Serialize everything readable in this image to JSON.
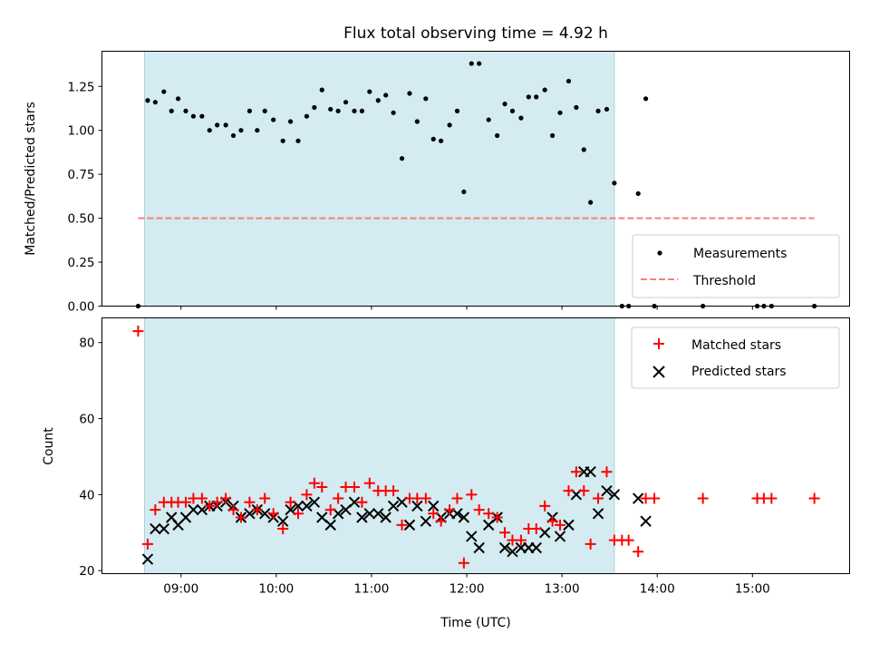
{
  "title": "Flux total observing time = 4.92 h",
  "colors": {
    "shade": "#d3ebf1",
    "shade_edge": "#a9d3dc",
    "measurement": "#000000",
    "threshold": "#f87e7e",
    "matched": "#ff0000",
    "predicted": "#000000"
  },
  "chart_data": [
    {
      "type": "scatter",
      "ylabel": "Matched/Predicted stars",
      "xlim": [
        8.17,
        16.02
      ],
      "ylim": [
        0,
        1.45
      ],
      "yticks": [
        0.0,
        0.25,
        0.5,
        0.75,
        1.0,
        1.25
      ],
      "ytick_labels": [
        "0.00",
        "0.25",
        "0.50",
        "0.75",
        "1.00",
        "1.25"
      ],
      "shaded_interval": [
        8.617,
        13.55
      ],
      "threshold": {
        "label": "Threshold",
        "y": 0.5,
        "x_range": [
          8.55,
          15.65
        ]
      },
      "legend": {
        "placement": "lower-right",
        "entries": [
          "Measurements",
          "Threshold"
        ]
      },
      "series": [
        {
          "name": "Measurements",
          "x": [
            8.55,
            8.65,
            8.73,
            8.82,
            8.9,
            8.97,
            9.05,
            9.13,
            9.22,
            9.3,
            9.38,
            9.47,
            9.55,
            9.63,
            9.72,
            9.8,
            9.88,
            9.97,
            10.07,
            10.15,
            10.23,
            10.32,
            10.4,
            10.48,
            10.57,
            10.65,
            10.73,
            10.82,
            10.9,
            10.98,
            11.07,
            11.15,
            11.23,
            11.32,
            11.4,
            11.48,
            11.57,
            11.65,
            11.73,
            11.82,
            11.9,
            11.97,
            12.05,
            12.13,
            12.23,
            12.32,
            12.4,
            12.48,
            12.57,
            12.65,
            12.73,
            12.82,
            12.9,
            12.98,
            13.07,
            13.15,
            13.23,
            13.3,
            13.38,
            13.47,
            13.55,
            13.63,
            13.7,
            13.8,
            13.88,
            13.97,
            14.48,
            15.05,
            15.12,
            15.2,
            15.65
          ],
          "y": [
            0.0,
            1.17,
            1.16,
            1.22,
            1.11,
            1.18,
            1.11,
            1.08,
            1.08,
            1.0,
            1.03,
            1.03,
            0.97,
            1.0,
            1.11,
            1.0,
            1.11,
            1.06,
            0.94,
            1.05,
            0.94,
            1.08,
            1.13,
            1.23,
            1.12,
            1.11,
            1.16,
            1.11,
            1.11,
            1.22,
            1.17,
            1.2,
            1.1,
            0.84,
            1.21,
            1.05,
            1.18,
            0.95,
            0.94,
            1.03,
            1.11,
            0.65,
            1.38,
            1.38,
            1.06,
            0.97,
            1.15,
            1.11,
            1.07,
            1.19,
            1.19,
            1.23,
            0.97,
            1.1,
            1.28,
            1.13,
            0.89,
            0.59,
            1.11,
            1.12,
            0.7,
            0.0,
            0.0,
            0.64,
            1.18,
            0.0,
            0.0,
            0.0,
            0.0,
            0.0,
            0.0
          ]
        }
      ]
    },
    {
      "type": "scatter",
      "ylabel": "Count",
      "xlabel": "Time (UTC)",
      "xlim": [
        8.17,
        16.02
      ],
      "ylim": [
        19.2,
        86.5
      ],
      "yticks": [
        20,
        40,
        60,
        80
      ],
      "xticks": [
        9,
        10,
        11,
        12,
        13,
        14,
        15
      ],
      "xtick_labels": [
        "09:00",
        "10:00",
        "11:00",
        "12:00",
        "13:00",
        "14:00",
        "15:00"
      ],
      "shaded_interval": [
        8.617,
        13.55
      ],
      "legend": {
        "placement": "upper-right",
        "entries": [
          "Matched stars",
          "Predicted stars"
        ]
      },
      "series": [
        {
          "name": "Matched stars",
          "marker": "plus",
          "x": [
            8.55,
            8.65,
            8.73,
            8.82,
            8.9,
            8.97,
            9.05,
            9.13,
            9.22,
            9.3,
            9.38,
            9.47,
            9.55,
            9.63,
            9.72,
            9.8,
            9.88,
            9.97,
            10.07,
            10.15,
            10.23,
            10.32,
            10.4,
            10.48,
            10.57,
            10.65,
            10.73,
            10.82,
            10.9,
            10.98,
            11.07,
            11.15,
            11.23,
            11.32,
            11.4,
            11.48,
            11.57,
            11.65,
            11.73,
            11.82,
            11.9,
            11.97,
            12.05,
            12.13,
            12.23,
            12.32,
            12.4,
            12.48,
            12.57,
            12.65,
            12.73,
            12.82,
            12.9,
            12.98,
            13.07,
            13.15,
            13.23,
            13.3,
            13.38,
            13.47,
            13.55,
            13.63,
            13.7,
            13.8,
            13.88,
            13.97,
            14.48,
            15.05,
            15.12,
            15.2,
            15.65
          ],
          "y": [
            83,
            27,
            36,
            38,
            38,
            38,
            38,
            39,
            39,
            37,
            38,
            39,
            36,
            34,
            38,
            36,
            39,
            35,
            31,
            38,
            35,
            40,
            43,
            42,
            36,
            39,
            42,
            42,
            38,
            43,
            41,
            41,
            41,
            32,
            39,
            39,
            39,
            35,
            33,
            36,
            39,
            22,
            40,
            36,
            35,
            34,
            30,
            28,
            28,
            31,
            31,
            37,
            33,
            32,
            41,
            46,
            41,
            27,
            39,
            46,
            28,
            28,
            28,
            25,
            39,
            39,
            39,
            39,
            39,
            39,
            39
          ]
        },
        {
          "name": "Predicted stars",
          "marker": "x",
          "x": [
            8.65,
            8.73,
            8.82,
            8.9,
            8.97,
            9.05,
            9.13,
            9.22,
            9.3,
            9.38,
            9.47,
            9.55,
            9.63,
            9.72,
            9.8,
            9.88,
            9.97,
            10.07,
            10.15,
            10.23,
            10.32,
            10.4,
            10.48,
            10.57,
            10.65,
            10.73,
            10.82,
            10.9,
            10.98,
            11.07,
            11.15,
            11.23,
            11.32,
            11.4,
            11.48,
            11.57,
            11.65,
            11.73,
            11.82,
            11.9,
            11.97,
            12.05,
            12.13,
            12.23,
            12.32,
            12.4,
            12.48,
            12.57,
            12.65,
            12.73,
            12.82,
            12.9,
            12.98,
            13.07,
            13.15,
            13.23,
            13.3,
            13.38,
            13.47,
            13.55,
            13.8,
            13.88
          ],
          "y": [
            23,
            31,
            31,
            34,
            32,
            34,
            36,
            36,
            37,
            37,
            38,
            37,
            34,
            35,
            36,
            35,
            34,
            33,
            36,
            37,
            37,
            38,
            34,
            32,
            35,
            36,
            38,
            34,
            35,
            35,
            34,
            37,
            38,
            32,
            37,
            33,
            37,
            34,
            35,
            35,
            34,
            29,
            26,
            32,
            34,
            26,
            25,
            26,
            26,
            26,
            30,
            34,
            29,
            32,
            40,
            46,
            46,
            35,
            41,
            40,
            39,
            33
          ]
        }
      ]
    }
  ]
}
